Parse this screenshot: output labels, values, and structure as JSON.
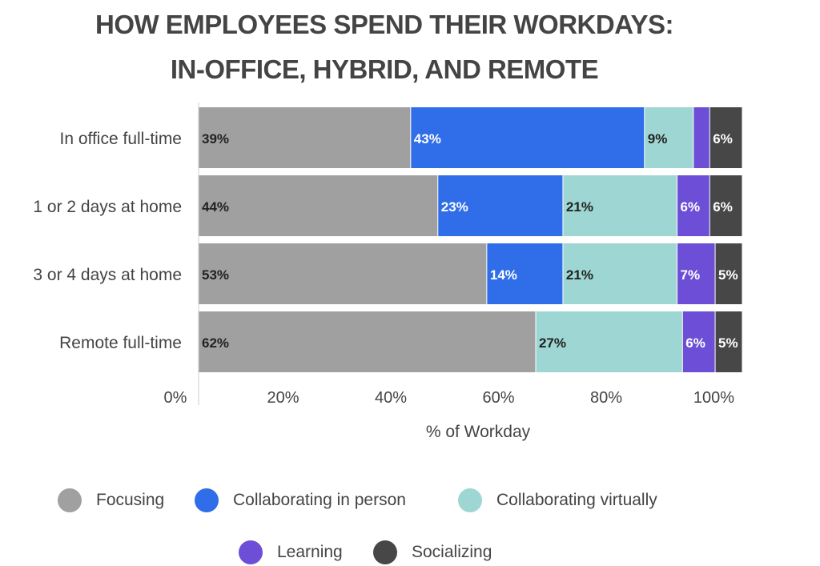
{
  "chart_data": {
    "type": "bar",
    "orientation": "horizontal",
    "stacked": true,
    "title": "HOW EMPLOYEES SPEND THEIR WORKDAYS: IN-OFFICE, HYBRID, AND REMOTE",
    "title_lines": [
      "HOW EMPLOYEES SPEND THEIR WORKDAYS:",
      "IN-OFFICE, HYBRID, AND REMOTE"
    ],
    "categories": [
      "In office full-time",
      "1 or 2 days at home",
      "3 or 4 days at home",
      "Remote full-time"
    ],
    "series": [
      {
        "name": "Focusing",
        "color": "#a0a0a0",
        "label_color": "#222222",
        "values": [
          39,
          44,
          53,
          62
        ]
      },
      {
        "name": "Collaborating in person",
        "color": "#2f6ee8",
        "label_color": "#ffffff",
        "values": [
          43,
          23,
          14,
          0
        ]
      },
      {
        "name": "Collaborating virtually",
        "color": "#9dd6d2",
        "label_color": "#222222",
        "values": [
          9,
          21,
          21,
          27
        ]
      },
      {
        "name": "Learning",
        "color": "#6c4fd6",
        "label_color": "#ffffff",
        "values": [
          3,
          6,
          7,
          6
        ]
      },
      {
        "name": "Socializing",
        "color": "#474747",
        "label_color": "#ffffff",
        "values": [
          6,
          6,
          5,
          5
        ]
      }
    ],
    "xlabel": "% of Workday",
    "xticks": [
      "0%",
      "20%",
      "40%",
      "60%",
      "80%",
      "100%"
    ],
    "xlim": [
      0,
      100
    ],
    "grid": false,
    "legend": "bottom"
  }
}
